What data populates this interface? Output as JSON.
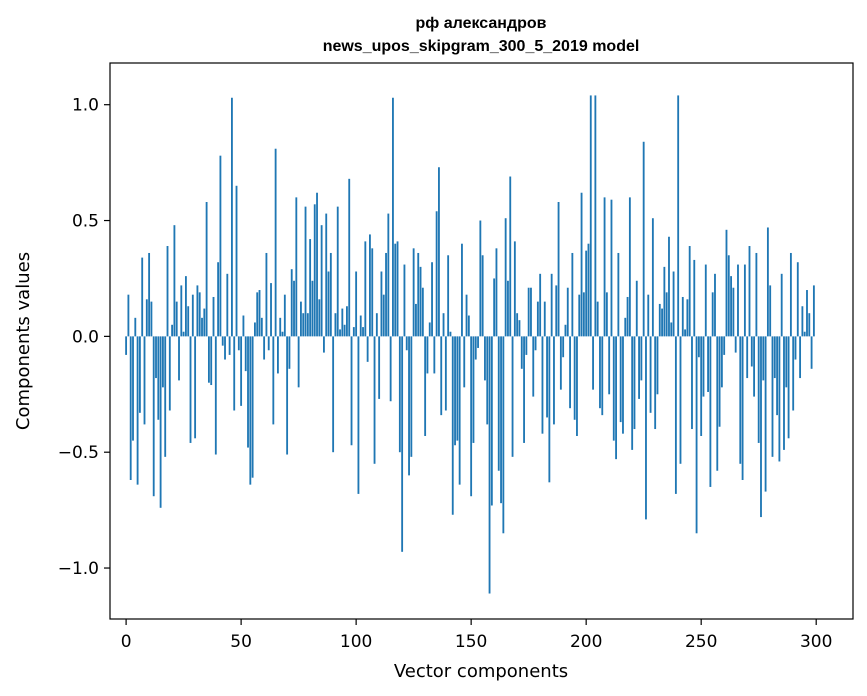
{
  "chart_data": {
    "type": "bar",
    "title_line1": "рф александров",
    "title_line2": "news_upos_skipgram_300_5_2019 model",
    "xlabel": "Vector components",
    "ylabel": "Components values",
    "xlim": [
      -7,
      316
    ],
    "ylim": [
      -1.22,
      1.18
    ],
    "xticks": [
      0,
      50,
      100,
      150,
      200,
      250,
      300
    ],
    "xtick_labels": [
      "0",
      "50",
      "100",
      "150",
      "200",
      "250",
      "300"
    ],
    "yticks": [
      -1.0,
      -0.5,
      0.0,
      0.5,
      1.0
    ],
    "ytick_labels": [
      "−1.0",
      "−0.5",
      "0.0",
      "0.5",
      "1.0"
    ],
    "bar_color": "#1f77b4",
    "bar_width": 0.8,
    "values": [
      -0.08,
      0.18,
      -0.62,
      -0.45,
      0.08,
      -0.64,
      -0.33,
      0.34,
      -0.38,
      0.16,
      0.36,
      0.15,
      -0.69,
      -0.18,
      -0.36,
      -0.74,
      -0.22,
      -0.52,
      0.39,
      -0.32,
      0.05,
      0.48,
      0.15,
      -0.19,
      0.22,
      0.02,
      0.26,
      0.13,
      -0.46,
      0.18,
      -0.44,
      0.22,
      0.19,
      0.08,
      0.12,
      0.58,
      -0.2,
      -0.21,
      0.17,
      -0.51,
      0.32,
      0.78,
      -0.04,
      -0.1,
      0.27,
      -0.08,
      1.03,
      -0.32,
      0.65,
      -0.06,
      -0.3,
      0.09,
      -0.15,
      -0.48,
      -0.64,
      -0.61,
      0.06,
      0.19,
      0.2,
      0.08,
      -0.1,
      0.36,
      -0.06,
      0.23,
      -0.38,
      0.81,
      -0.16,
      0.08,
      0.02,
      0.18,
      -0.51,
      -0.14,
      0.29,
      0.24,
      0.6,
      -0.22,
      0.15,
      0.1,
      0.56,
      0.1,
      0.42,
      0.24,
      0.57,
      0.62,
      0.16,
      0.48,
      -0.07,
      0.53,
      0.28,
      0.36,
      -0.5,
      0.1,
      0.56,
      0.03,
      0.12,
      0.05,
      0.13,
      0.68,
      -0.47,
      0.04,
      0.28,
      -0.68,
      0.09,
      0.04,
      0.41,
      -0.11,
      0.44,
      0.38,
      -0.55,
      0.1,
      -0.27,
      0.28,
      0.18,
      0.36,
      0.53,
      -0.28,
      1.03,
      0.4,
      0.41,
      -0.5,
      -0.93,
      0.31,
      -0.06,
      -0.6,
      -0.52,
      0.38,
      0.14,
      0.36,
      0.3,
      0.21,
      -0.43,
      -0.16,
      0.06,
      0.32,
      -0.16,
      0.54,
      0.73,
      -0.34,
      0.1,
      -0.32,
      0.35,
      0.02,
      -0.77,
      -0.47,
      -0.45,
      -0.64,
      0.4,
      -0.22,
      0.18,
      0.09,
      -0.69,
      -0.46,
      -0.1,
      -0.05,
      0.5,
      0.35,
      -0.19,
      -0.38,
      -1.11,
      -0.73,
      0.25,
      0.38,
      -0.58,
      -0.72,
      -0.85,
      0.51,
      0.24,
      0.69,
      -0.52,
      0.41,
      0.1,
      0.07,
      -0.14,
      -0.46,
      -0.08,
      0.21,
      0.21,
      -0.26,
      -0.06,
      0.15,
      0.27,
      -0.42,
      0.15,
      -0.35,
      -0.63,
      0.27,
      -0.38,
      0.22,
      0.58,
      -0.23,
      -0.09,
      0.05,
      0.21,
      -0.31,
      0.36,
      -0.36,
      -0.43,
      0.18,
      0.62,
      0.19,
      0.37,
      0.4,
      1.04,
      -0.23,
      1.04,
      0.15,
      -0.31,
      -0.34,
      0.6,
      0.19,
      -0.25,
      0.59,
      -0.45,
      -0.53,
      0.36,
      -0.37,
      -0.42,
      0.08,
      0.17,
      0.6,
      -0.49,
      -0.4,
      0.24,
      -0.27,
      -0.19,
      0.84,
      -0.79,
      0.18,
      -0.33,
      0.51,
      -0.4,
      -0.25,
      0.14,
      0.12,
      0.3,
      0.19,
      0.43,
      0.06,
      0.28,
      -0.68,
      1.04,
      -0.55,
      0.17,
      0.03,
      0.16,
      0.39,
      -0.4,
      0.33,
      -0.85,
      -0.09,
      -0.43,
      -0.26,
      0.31,
      -0.24,
      -0.65,
      0.19,
      0.27,
      -0.58,
      -0.39,
      -0.22,
      -0.08,
      0.46,
      0.35,
      0.26,
      0.21,
      -0.07,
      0.31,
      -0.55,
      -0.62,
      0.31,
      -0.18,
      0.39,
      -0.13,
      -0.26,
      0.36,
      -0.46,
      -0.78,
      -0.19,
      -0.67,
      0.47,
      0.22,
      -0.52,
      -0.18,
      -0.34,
      -0.54,
      0.27,
      -0.49,
      -0.22,
      -0.44,
      0.36,
      -0.32,
      -0.1,
      0.32,
      -0.18,
      0.13,
      0.02,
      0.2,
      0.1,
      -0.14,
      0.22
    ]
  }
}
